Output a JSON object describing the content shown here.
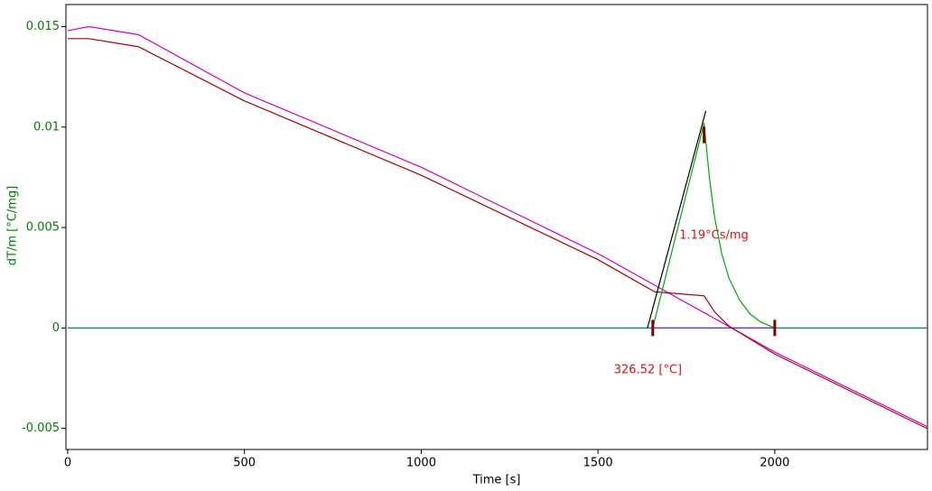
{
  "chart_data": {
    "type": "line",
    "xlabel": "Time [s]",
    "ylabel": "dT/m  [°C/mg]",
    "xlim": [
      -5,
      2432
    ],
    "ylim": [
      -0.00605,
      0.0161
    ],
    "xticks": [
      0,
      500,
      1000,
      1500,
      2000
    ],
    "yticks": [
      0.015,
      0.01,
      0.005,
      0,
      -0.005
    ],
    "ytick_color": "#008000",
    "series": [
      {
        "color": "#008080",
        "x": [
          0,
          2430
        ],
        "values": [
          0,
          0
        ]
      },
      {
        "color": "#7030c0",
        "x": [
          1650,
          2000
        ],
        "values": [
          0,
          0
        ]
      },
      {
        "color": "#cc00cc",
        "x": [
          0,
          60,
          200,
          500,
          1000,
          1500,
          2000,
          2430
        ],
        "values": [
          0.0148,
          0.015,
          0.0146,
          0.0117,
          0.008,
          0.0037,
          -0.0012,
          -0.0049
        ]
      },
      {
        "color": "#aa0000",
        "x": [
          0,
          60,
          200,
          500,
          1000,
          1500,
          1660,
          1800,
          1830,
          1870,
          2000,
          2430
        ],
        "values": [
          0.0144,
          0.0144,
          0.014,
          0.0113,
          0.0076,
          0.0034,
          0.0018,
          0.0016,
          0.0008,
          0.0001,
          -0.0013,
          -0.005
        ]
      },
      {
        "color": "#00aa00",
        "x": [
          1655,
          1800,
          1815,
          1830,
          1850,
          1870,
          1900,
          1930,
          1960,
          2000
        ],
        "values": [
          0,
          0.0102,
          0.0075,
          0.0055,
          0.0037,
          0.0025,
          0.0014,
          0.0007,
          0.0003,
          0
        ]
      },
      {
        "color": "#000000",
        "x": [
          1640,
          1805
        ],
        "values": [
          0,
          0.0108
        ]
      }
    ],
    "markers": {
      "color": "#800000",
      "x": [
        1655,
        1800,
        2000
      ],
      "values": [
        0,
        0.0096,
        0
      ]
    },
    "annotations": [
      {
        "text": "1.19°Cs/mg",
        "x": 1730,
        "y": 0.0046,
        "color": "#dd1111"
      },
      {
        "text": "326.52 [°C]",
        "x": 1545,
        "y": -0.0021,
        "color": "#dd1111"
      }
    ]
  }
}
